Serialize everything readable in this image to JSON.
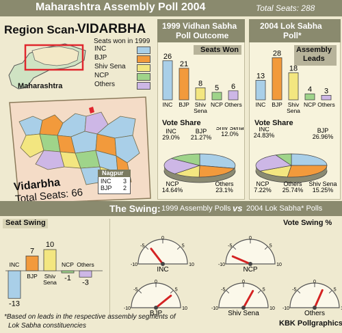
{
  "header": {
    "title": "Maharashtra Assembly Poll 2004",
    "total_seats": "Total Seats: 288"
  },
  "region": {
    "title_prefix": "Region Scan-",
    "title_name": "VIDARBHA",
    "state_label": "Maharashtra",
    "legend_title": "Seats won in 1999",
    "legend": [
      {
        "label": "INC",
        "color": "#a9cfe8"
      },
      {
        "label": "BJP",
        "color": "#f29a3c"
      },
      {
        "label": "Shiv Sena",
        "color": "#f3e680"
      },
      {
        "label": "NCP",
        "color": "#9fd48a"
      },
      {
        "label": "Others",
        "color": "#cdb7e6"
      }
    ],
    "map_name": "Vidarbha",
    "map_seats": "Total Seats: 66",
    "nagpur": {
      "title": "Nagpur",
      "rows": [
        {
          "party": "INC",
          "seats": "3"
        },
        {
          "party": "BJP",
          "seats": "2"
        }
      ]
    }
  },
  "vidhan": {
    "title_line1": "1999 Vidhan Sabha",
    "title_line2": "Poll Outcome",
    "sub": "Seats Won",
    "vote_share": "Vote Share"
  },
  "lok": {
    "title_line1": "2004 Lok Sabha",
    "title_line2": "Poll*",
    "sub_line1": "Assembly",
    "sub_line2": "Leads",
    "vote_share": "Vote Share"
  },
  "swing": {
    "title_bold": "The Swing:",
    "title_rest": "1999 Assembly Polls",
    "vs": "vs",
    "title_end": "2004 Lok Sabha* Polls",
    "seat_swing": "Seat Swing",
    "vote_swing": "Vote Swing %"
  },
  "footnote_line1": "*Based on leads in the respective assembly segments of",
  "footnote_line2": "Lok Sabha constituencies",
  "credit": "KBK Pollgraphics",
  "chart_data": [
    {
      "type": "bar",
      "id": "seats_1999",
      "categories": [
        "INC",
        "BJP",
        "Shiv Sena",
        "NCP",
        "Others"
      ],
      "values": [
        26,
        21,
        8,
        5,
        6
      ],
      "title": "Seats Won",
      "colors": [
        "#a9cfe8",
        "#f29a3c",
        "#f3e680",
        "#9fd48a",
        "#cdb7e6"
      ]
    },
    {
      "type": "bar",
      "id": "leads_2004",
      "categories": [
        "INC",
        "BJP",
        "Shiv Sena",
        "NCP",
        "Others"
      ],
      "values": [
        13,
        28,
        18,
        4,
        3
      ],
      "title": "Assembly Leads",
      "colors": [
        "#a9cfe8",
        "#f29a3c",
        "#f3e680",
        "#9fd48a",
        "#cdb7e6"
      ]
    },
    {
      "type": "pie",
      "id": "vote_share_1999",
      "title": "Vote Share",
      "slices": [
        {
          "label": "INC",
          "value": 29.0,
          "display": "29.0%"
        },
        {
          "label": "BJP",
          "value": 21.27,
          "display": "21.27%"
        },
        {
          "label": "Shiv Sena",
          "value": 12.0,
          "display": "12.0%"
        },
        {
          "label": "Others",
          "value": 23.1,
          "display": "23.1%"
        },
        {
          "label": "NCP",
          "value": 14.64,
          "display": "14.64%"
        }
      ]
    },
    {
      "type": "pie",
      "id": "vote_share_2004",
      "title": "Vote Share",
      "slices": [
        {
          "label": "INC",
          "value": 24.83,
          "display": "24.83%"
        },
        {
          "label": "BJP",
          "value": 26.96,
          "display": "26.96%"
        },
        {
          "label": "Shiv Sena",
          "value": 15.25,
          "display": "15.25%"
        },
        {
          "label": "Others",
          "value": 25.74,
          "display": "25.74%"
        },
        {
          "label": "NCP",
          "value": 7.22,
          "display": "7.22%"
        }
      ]
    },
    {
      "type": "bar",
      "id": "seat_swing",
      "title": "Seat Swing",
      "categories": [
        "INC",
        "BJP",
        "Shiv Sena",
        "NCP",
        "Others"
      ],
      "values": [
        -13,
        7,
        10,
        -1,
        -3
      ],
      "colors": [
        "#a9cfe8",
        "#f29a3c",
        "#f3e680",
        "#9fd48a",
        "#cdb7e6"
      ]
    },
    {
      "type": "gauge",
      "id": "vote_swing",
      "title": "Vote Swing %",
      "range": [
        -10,
        10
      ],
      "ticks": [
        "-10",
        "-5",
        "0",
        "5",
        "10"
      ],
      "gauges": [
        {
          "label": "INC",
          "value": -4.17
        },
        {
          "label": "NCP",
          "value": -7.42
        },
        {
          "label": "BJP",
          "value": 5.69
        },
        {
          "label": "Shiv Sena",
          "value": 3.25
        },
        {
          "label": "Others",
          "value": 2.64
        }
      ]
    }
  ]
}
